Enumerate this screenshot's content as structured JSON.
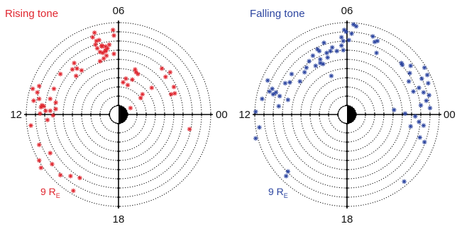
{
  "chart_data": [
    {
      "type": "scatter",
      "coordinate_system": "polar (magnetic local time vs. radial distance)",
      "title": "Rising tone",
      "color": "#e0262f",
      "marker": "asterisk",
      "mlt_labels": {
        "top": "06",
        "left": "12",
        "right": "00",
        "bottom": "18"
      },
      "radius_label": {
        "main": "9 R",
        "sub": "E"
      },
      "r_max_re": 10,
      "ring_step_re": 1,
      "grid": "dotted rings",
      "x": [
        -2.8,
        -0.6,
        -2.6,
        -2.4,
        -2.1,
        -0.5,
        -1.8,
        -1.4,
        -1.4,
        -2.3,
        -1.0,
        -0.5,
        -1.8,
        -1.4,
        -1.7,
        -1.3,
        -2.5,
        -1.2,
        -2.0,
        -1.6,
        -2.0,
        -4.5,
        -4.0,
        -6.3,
        -5.0,
        -4.6,
        -4.8,
        -8.6,
        -7.0,
        -8.8,
        -9.3,
        -8.6,
        -7.4,
        -9.2,
        -6.8,
        -8.3,
        -8.4,
        -7.4,
        -7.9,
        -8.5,
        -7.1,
        -6.8,
        -7.7,
        -8.1,
        1.8,
        2.1,
        0.8,
        1.5,
        0.5,
        1.9,
        1.0,
        3.6,
        2.4,
        1.3,
        2.6,
        4.7,
        5.6,
        5.1,
        6.0,
        5.7,
        6.1,
        7.7,
        -9.5,
        -8.6,
        -7.4,
        -8.6,
        -8.4,
        -7.2,
        -5.2,
        -6.3,
        -4.2,
        -4.9
      ],
      "y": [
        8.4,
        9.2,
        8.9,
        8.0,
        8.1,
        8.6,
        7.5,
        7.4,
        6.9,
        7.2,
        7.6,
        6.6,
        7.4,
        7.0,
        6.7,
        6.4,
        7.6,
        7.2,
        6.8,
        6.1,
        5.8,
        5.0,
        4.8,
        4.4,
        4.9,
        4.2,
        5.6,
        3.1,
        2.8,
        2.4,
        2.8,
        1.7,
        1.7,
        1.5,
        1.3,
        1.0,
        0.8,
        0.4,
        0.4,
        0.1,
        -0.1,
        0.6,
        -0.6,
        0.9,
        4.9,
        4.4,
        3.9,
        3.8,
        3.5,
        4.6,
        3.2,
        2.9,
        1.8,
        0.7,
        2.2,
        5.0,
        4.6,
        4.1,
        3.0,
        2.2,
        2.3,
        -1.6,
        -1.2,
        -3.3,
        -4.2,
        -5.0,
        -5.8,
        -5.4,
        -6.7,
        -6.6,
        -6.9,
        -8.3
      ]
    },
    {
      "type": "scatter",
      "coordinate_system": "polar (magnetic local time vs. radial distance)",
      "title": "Falling tone",
      "color": "#2c45a0",
      "marker": "asterisk",
      "mlt_labels": {
        "top": "06",
        "left": "12",
        "right": "00",
        "bottom": "18"
      },
      "radius_label": {
        "main": "9 R",
        "sub": "E"
      },
      "r_max_re": 10,
      "ring_step_re": 1,
      "grid": "dotted rings",
      "x": [
        0.7,
        1.0,
        -0.3,
        -0.1,
        0.5,
        -0.6,
        -0.4,
        0.2,
        -0.6,
        -0.4,
        -2.5,
        -1.6,
        -1.8,
        -2.2,
        -1.1,
        -3.0,
        -2.9,
        -3.7,
        -3.2,
        -2.1,
        -2.9,
        -3.4,
        -4.1,
        -2.6,
        -4.4,
        -4.6,
        -1.7,
        -6.0,
        -5.1,
        -6.2,
        -6.7,
        -8.6,
        -8.1,
        -8.4,
        -7.7,
        -8.0,
        -7.3,
        -9.2,
        -6.4,
        -7.4,
        -9.9,
        2.8,
        3.3,
        3.0,
        3.2,
        5.9,
        6.0,
        6.9,
        8.4,
        8.7,
        6.8,
        6.7,
        7.8,
        8.1,
        8.8,
        8.3,
        8.9,
        8.6,
        7.2,
        8.0,
        9.0,
        5.1,
        6.3,
        7.4,
        7.8,
        6.9,
        8.3,
        7.9,
        8.4,
        -9.5,
        -9.9,
        -6.4,
        -6.6,
        6.2
      ],
      "y": [
        9.8,
        9.6,
        9.2,
        9.0,
        8.8,
        8.4,
        8.0,
        8.1,
        7.5,
        7.0,
        7.8,
        7.3,
        6.9,
        6.7,
        6.9,
        6.9,
        6.0,
        6.4,
        7.1,
        6.2,
        5.6,
        5.3,
        5.8,
        5.5,
        5.1,
        4.6,
        4.2,
        4.4,
        3.6,
        3.5,
        3.4,
        3.7,
        2.8,
        2.5,
        2.4,
        2.2,
        2.0,
        1.7,
        1.6,
        0.9,
        0.3,
        8.5,
        8.0,
        7.9,
        6.7,
        5.6,
        5.4,
        5.3,
        5.1,
        4.3,
        4.5,
        3.6,
        2.9,
        3.9,
        3.4,
        2.4,
        2.1,
        1.5,
        2.5,
        1.0,
        0.7,
        0.5,
        0.1,
        -0.2,
        -0.8,
        -1.3,
        -1.2,
        -2.5,
        -3.0,
        -1.4,
        -2.6,
        -6.2,
        -6.7,
        -7.3
      ]
    }
  ]
}
